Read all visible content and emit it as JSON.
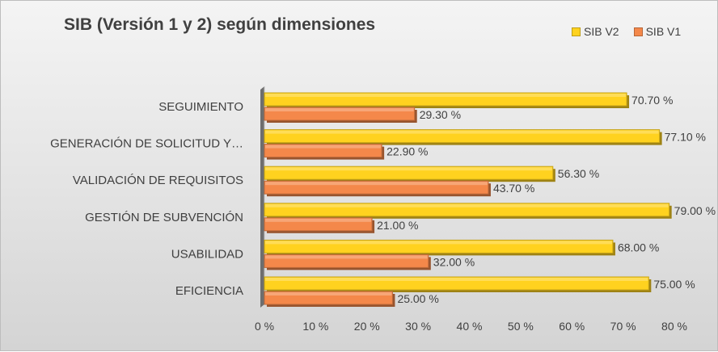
{
  "chart_data": {
    "type": "bar",
    "orientation": "horizontal",
    "title": "SIB (Versión 1 y 2) según dimensiones",
    "categories": [
      "SEGUIMIENTO",
      "GENERACIÓN DE SOLICITUD Y…",
      "VALIDACIÓN DE REQUISITOS",
      "GESTIÓN DE SUBVENCIÓN",
      "USABILIDAD",
      "EFICIENCIA"
    ],
    "series": [
      {
        "name": "SIB V2",
        "color": "#ffd21f",
        "values": [
          70.7,
          77.1,
          56.3,
          79.0,
          68.0,
          75.0
        ],
        "labels": [
          "70.70 %",
          "77.10 %",
          "56.30 %",
          "79.00 %",
          "68.00 %",
          "75.00 %"
        ]
      },
      {
        "name": "SIB V1",
        "color": "#f4884a",
        "values": [
          29.3,
          22.9,
          43.7,
          21.0,
          32.0,
          25.0
        ],
        "labels": [
          "29.30 %",
          "22.90 %",
          "43.70 %",
          "21.00 %",
          "32.00 %",
          "25.00 %"
        ]
      }
    ],
    "xlim": [
      0,
      80
    ],
    "xticks": [
      "0 %",
      "10 %",
      "20 %",
      "30 %",
      "40 %",
      "50 %",
      "60 %",
      "70 %",
      "80 %"
    ],
    "legend_position": "top-right",
    "grid": false
  }
}
